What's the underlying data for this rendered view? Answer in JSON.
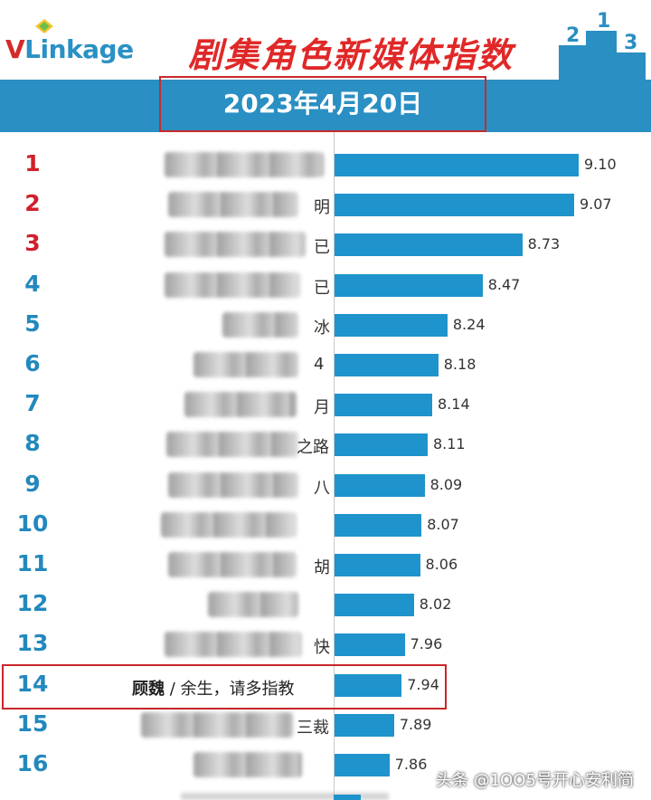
{
  "header": {
    "logo_text_v": "V",
    "logo_text_rest": "Linkage",
    "title": "剧集角色新媒体指数",
    "date": "2023年4月20日"
  },
  "watermark": "头条 @1OO5号开心安利简",
  "colors": {
    "bar": "#1f93cc",
    "band": "#2a8fc2",
    "title_red": "#e02828",
    "rank_red": "#d0202a",
    "rank_blue": "#2388bd",
    "highlight_border": "#c9252a"
  },
  "chart_data": {
    "type": "bar",
    "orientation": "horizontal",
    "title": "剧集角色新媒体指数",
    "subtitle": "2023年4月20日",
    "ranks": [
      "1",
      "2",
      "3",
      "4",
      "5",
      "6",
      "7",
      "8",
      "9",
      "10",
      "11",
      "12",
      "13",
      "14",
      "15",
      "16"
    ],
    "name_fragments": [
      "",
      "明",
      "已",
      "已",
      "冰",
      "4",
      "月",
      "之路",
      "八",
      "",
      "胡",
      "",
      "快",
      "",
      "三裁",
      ""
    ],
    "highlight": {
      "rank": "14",
      "role": "顾魏",
      "separator": " / ",
      "drama": "余生，请多指教"
    },
    "values": [
      9.1,
      9.07,
      8.73,
      8.47,
      8.24,
      8.18,
      8.14,
      8.11,
      8.09,
      8.07,
      8.06,
      8.02,
      7.96,
      7.94,
      7.89,
      7.86
    ],
    "value_labels": [
      "9.10",
      "9.07",
      "8.73",
      "8.47",
      "8.24",
      "8.18",
      "8.14",
      "8.11",
      "8.09",
      "8.07",
      "8.06",
      "8.02",
      "7.96",
      "7.94",
      "7.89",
      "7.86"
    ],
    "xlim": [
      7.5,
      9.2
    ],
    "grid": false,
    "legend": "none"
  }
}
